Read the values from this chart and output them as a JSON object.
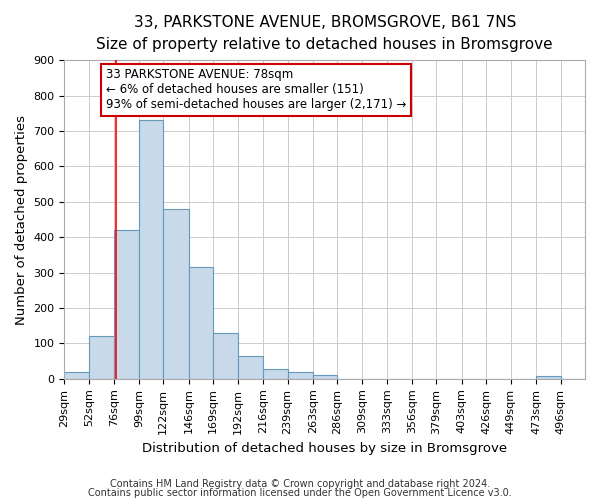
{
  "title": "33, PARKSTONE AVENUE, BROMSGROVE, B61 7NS",
  "subtitle": "Size of property relative to detached houses in Bromsgrove",
  "xlabel": "Distribution of detached houses by size in Bromsgrove",
  "ylabel": "Number of detached properties",
  "bar_color": "#c8d9ea",
  "bar_edge_color": "#6699bb",
  "bin_labels": [
    "29sqm",
    "52sqm",
    "76sqm",
    "99sqm",
    "122sqm",
    "146sqm",
    "169sqm",
    "192sqm",
    "216sqm",
    "239sqm",
    "263sqm",
    "286sqm",
    "309sqm",
    "333sqm",
    "356sqm",
    "379sqm",
    "403sqm",
    "426sqm",
    "449sqm",
    "473sqm",
    "496sqm"
  ],
  "bin_values": [
    20,
    122,
    420,
    730,
    480,
    315,
    130,
    65,
    28,
    20,
    10,
    0,
    0,
    0,
    0,
    0,
    0,
    0,
    0,
    8,
    0
  ],
  "bin_edges": [
    29,
    52,
    76,
    99,
    122,
    146,
    169,
    192,
    216,
    239,
    263,
    286,
    309,
    333,
    356,
    379,
    403,
    426,
    449,
    473,
    496,
    519
  ],
  "red_line_x": 78,
  "ylim": [
    0,
    900
  ],
  "yticks": [
    0,
    100,
    200,
    300,
    400,
    500,
    600,
    700,
    800,
    900
  ],
  "annotation_title": "33 PARKSTONE AVENUE: 78sqm",
  "annotation_line1": "← 6% of detached houses are smaller (151)",
  "annotation_line2": "93% of semi-detached houses are larger (2,171) →",
  "annotation_box_color": "#ffffff",
  "annotation_box_edge": "#cc0000",
  "footer1": "Contains HM Land Registry data © Crown copyright and database right 2024.",
  "footer2": "Contains public sector information licensed under the Open Government Licence v3.0.",
  "background_color": "#ffffff",
  "grid_color": "#cccccc",
  "title_fontsize": 11,
  "subtitle_fontsize": 10,
  "axis_label_fontsize": 9.5,
  "tick_fontsize": 8,
  "footer_fontsize": 7,
  "annotation_fontsize": 8.5
}
